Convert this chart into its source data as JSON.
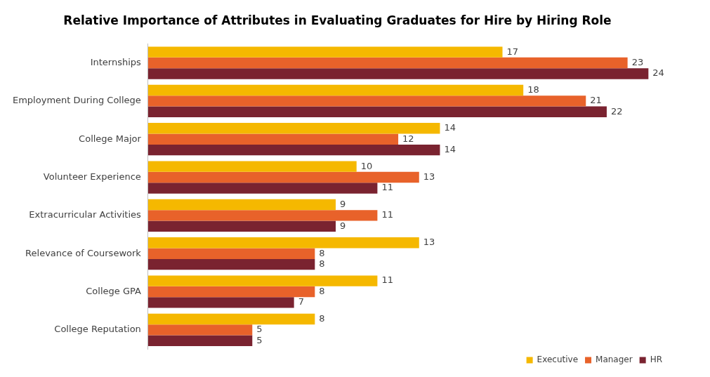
{
  "chart_data": {
    "type": "bar",
    "title": "Relative Importance of Attributes in Evaluating Graduates for Hire by Hiring Role",
    "orientation": "horizontal",
    "tick_labels": "y",
    "data_labels": true,
    "legend": "bottom right",
    "categories": [
      "Internships",
      "Employment During College",
      "College Major",
      "Volunteer Experience",
      "Extracurricular Activities",
      "Relevance of Coursework",
      "College GPA",
      "College Reputation"
    ],
    "series": [
      {
        "name": "Executive",
        "color": "#f5b800",
        "values": [
          17,
          18,
          14,
          10,
          9,
          13,
          11,
          8
        ]
      },
      {
        "name": "Manager",
        "color": "#e8622a",
        "values": [
          23,
          21,
          12,
          13,
          11,
          8,
          8,
          5
        ]
      },
      {
        "name": "HR",
        "color": "#7a2330",
        "values": [
          24,
          22,
          14,
          11,
          9,
          8,
          7,
          5
        ]
      }
    ]
  }
}
